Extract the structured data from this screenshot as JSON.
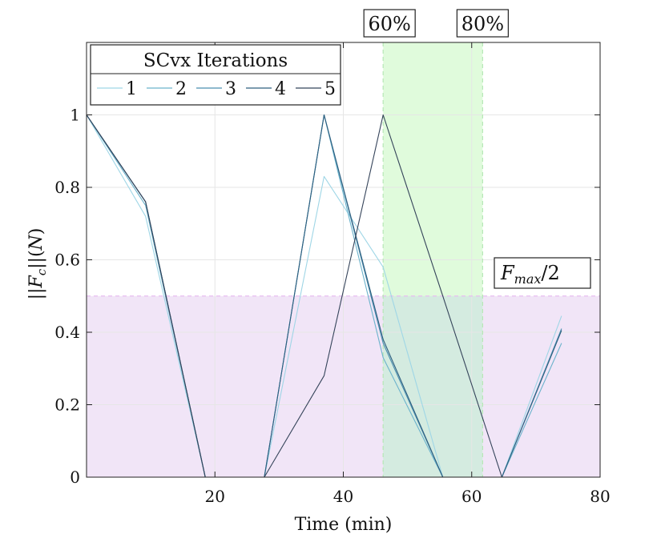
{
  "chart_data": {
    "type": "line",
    "title": "",
    "xlabel": "Time (min)",
    "ylabel": "||F_c||(N)",
    "xlim": [
      0,
      80
    ],
    "ylim": [
      0,
      1.2
    ],
    "xticks": [
      20,
      40,
      60,
      80
    ],
    "xtick_labels": [
      "20",
      "40",
      "60",
      "80"
    ],
    "yticks": [
      0,
      0.2,
      0.4,
      0.6,
      0.8,
      1
    ],
    "ytick_labels": [
      "0",
      "0.2",
      "0.4",
      "0.6",
      "0.8",
      "1"
    ],
    "grid": true,
    "legend": {
      "title": "SCvx Iterations",
      "placement": "top-left"
    },
    "colors": {
      "threshold_region": "#f1e5f7",
      "threshold_line": "#e8bdf0",
      "window_region": "#e0fbdc",
      "window_line": "#b6e7b6",
      "overlap_region": "#d4ebe0",
      "grid": "#e6e6e6",
      "axis": "#222222"
    },
    "series": [
      {
        "name": "1",
        "color": "#9fd6e6",
        "x": [
          0,
          9.2,
          18.5,
          27.7,
          37,
          46.2,
          55.5,
          64.7,
          74
        ],
        "y": [
          1.0,
          0.72,
          0.0,
          0.0,
          0.83,
          0.58,
          0.0,
          0.0,
          0.445
        ]
      },
      {
        "name": "2",
        "color": "#6cb3cc",
        "x": [
          0,
          9.2,
          18.5,
          27.7,
          37,
          46.2,
          55.5,
          64.7,
          74
        ],
        "y": [
          1.0,
          0.75,
          0.0,
          0.0,
          1.0,
          0.33,
          0.0,
          0.0,
          0.37
        ]
      },
      {
        "name": "3",
        "color": "#4a8fb0",
        "x": [
          0,
          9.2,
          18.5,
          27.7,
          37,
          46.2,
          55.5,
          64.7,
          74
        ],
        "y": [
          1.0,
          0.76,
          0.0,
          0.0,
          1.0,
          0.37,
          0.0,
          0.0,
          0.41
        ]
      },
      {
        "name": "4",
        "color": "#2f5f7f",
        "x": [
          0,
          9.2,
          18.5,
          27.7,
          37,
          46.2,
          55.5,
          64.7,
          74
        ],
        "y": [
          1.0,
          0.76,
          0.0,
          0.0,
          1.0,
          0.38,
          0.0,
          0.0,
          0.405
        ]
      },
      {
        "name": "5",
        "color": "#35445a",
        "x": [
          0,
          9.2,
          18.5,
          27.7,
          37,
          46.2,
          55.5,
          64.7,
          74
        ],
        "y": [
          1.0,
          0.76,
          0.0,
          0.0,
          0.28,
          1.0,
          0.5,
          0.0,
          0.0
        ]
      }
    ],
    "threshold": {
      "label": "F_max/2",
      "value": 0.5
    },
    "window": {
      "start_x": 46.2,
      "end_x": 61.7,
      "start_label": "60%",
      "end_label": "80%"
    }
  }
}
